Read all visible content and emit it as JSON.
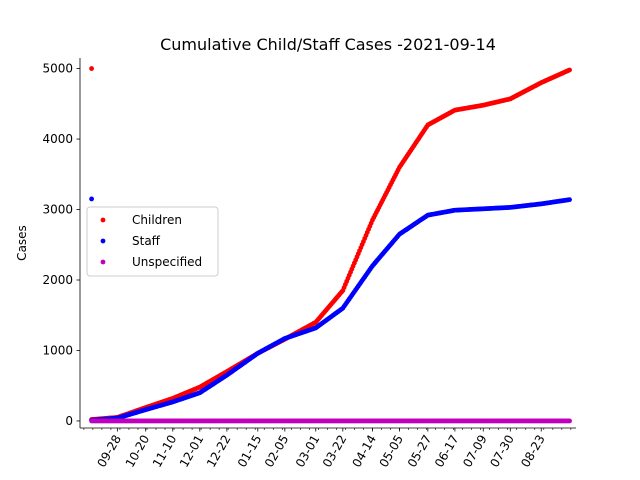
{
  "chart_data": {
    "type": "scatter",
    "title": "Cumulative Child/Staff Cases -2021-09-14",
    "xlabel": "",
    "ylabel": "Cases",
    "ylim": [
      -100,
      5150
    ],
    "yticks": [
      0,
      1000,
      2000,
      3000,
      4000,
      5000
    ],
    "xlim": [
      "2020-08-30",
      "2021-09-19"
    ],
    "xticks": [
      "09-28",
      "10-20",
      "11-10",
      "12-01",
      "12-22",
      "01-15",
      "02-05",
      "03-01",
      "03-22",
      "04-14",
      "05-05",
      "05-27",
      "06-17",
      "07-09",
      "07-30",
      "08-23"
    ],
    "xtick_dates": [
      "2020-09-28",
      "2020-10-20",
      "2020-11-10",
      "2020-12-01",
      "2020-12-22",
      "2021-01-15",
      "2021-02-05",
      "2021-03-01",
      "2021-03-22",
      "2021-04-14",
      "2021-05-05",
      "2021-05-27",
      "2021-06-17",
      "2021-07-09",
      "2021-07-30",
      "2021-08-23"
    ],
    "grid": false,
    "legend_position": "center-left",
    "series": [
      {
        "name": "Children",
        "color": "#ff0000",
        "outliers": [
          [
            "2020-09-08",
            5000
          ]
        ],
        "keypoints": [
          [
            "2020-09-08",
            20
          ],
          [
            "2020-09-28",
            50
          ],
          [
            "2020-10-20",
            190
          ],
          [
            "2020-11-10",
            320
          ],
          [
            "2020-12-01",
            480
          ],
          [
            "2020-12-22",
            700
          ],
          [
            "2021-01-15",
            960
          ],
          [
            "2021-02-05",
            1160
          ],
          [
            "2021-03-01",
            1400
          ],
          [
            "2021-03-22",
            1850
          ],
          [
            "2021-04-14",
            2850
          ],
          [
            "2021-05-05",
            3600
          ],
          [
            "2021-05-27",
            4200
          ],
          [
            "2021-06-17",
            4410
          ],
          [
            "2021-07-09",
            4480
          ],
          [
            "2021-07-30",
            4570
          ],
          [
            "2021-08-23",
            4800
          ],
          [
            "2021-09-14",
            4980
          ]
        ]
      },
      {
        "name": "Staff",
        "color": "#0000ff",
        "outliers": [
          [
            "2020-09-08",
            3150
          ]
        ],
        "keypoints": [
          [
            "2020-09-08",
            10
          ],
          [
            "2020-09-28",
            40
          ],
          [
            "2020-10-20",
            160
          ],
          [
            "2020-11-10",
            270
          ],
          [
            "2020-12-01",
            400
          ],
          [
            "2020-12-22",
            650
          ],
          [
            "2021-01-15",
            960
          ],
          [
            "2021-02-05",
            1170
          ],
          [
            "2021-03-01",
            1320
          ],
          [
            "2021-03-22",
            1600
          ],
          [
            "2021-04-14",
            2200
          ],
          [
            "2021-05-05",
            2650
          ],
          [
            "2021-05-27",
            2920
          ],
          [
            "2021-06-17",
            2990
          ],
          [
            "2021-07-09",
            3010
          ],
          [
            "2021-07-30",
            3030
          ],
          [
            "2021-08-23",
            3080
          ],
          [
            "2021-09-14",
            3140
          ]
        ]
      },
      {
        "name": "Unspecified",
        "color": "#bf00bf",
        "outliers": [],
        "keypoints": [
          [
            "2020-09-08",
            0
          ],
          [
            "2021-09-14",
            0
          ]
        ]
      }
    ]
  }
}
